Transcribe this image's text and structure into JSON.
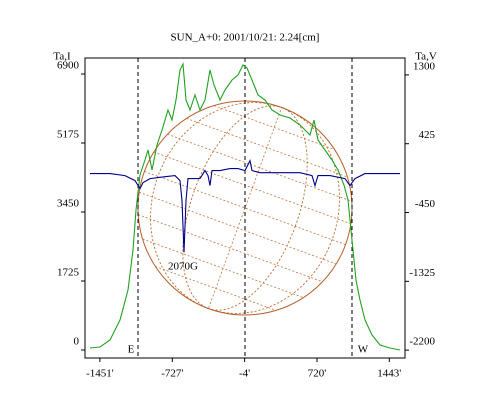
{
  "chart_data": {
    "type": "line",
    "title": "SUN_A+0: 2001/10/21: 2.24[cm]",
    "ylabel": "Ta,I",
    "y2label": "Ta,V",
    "annotations": [
      "E",
      "W",
      "2070G"
    ],
    "xlim": [
      -1600,
      1600
    ],
    "xticks": [
      {
        "value": -1451,
        "label": "-1451'"
      },
      {
        "value": -727,
        "label": "-727'"
      },
      {
        "value": -4,
        "label": "-4'"
      },
      {
        "value": 720,
        "label": "720'"
      },
      {
        "value": 1443,
        "label": "1443'"
      }
    ],
    "ylim": [
      -200,
      7300
    ],
    "yticks": [
      0,
      1725,
      3450,
      5175,
      6900
    ],
    "y2lim": [
      -2300,
      1515
    ],
    "y2ticks": [
      -2200,
      -1325,
      -450,
      425,
      1300
    ],
    "series": [
      {
        "color": "#22a022",
        "x": [
          -1550,
          -1450,
          -1350,
          -1250,
          -1170,
          -1120,
          -1090,
          -1050,
          -1000,
          -970,
          -930,
          -880,
          -830,
          -770,
          -730,
          -690,
          -650,
          -620,
          -590,
          -550,
          -500,
          -450,
          -400,
          -350,
          -310,
          -250,
          -200,
          -130,
          -70,
          -20,
          20,
          70,
          130,
          200,
          270,
          350,
          450,
          550,
          650,
          690,
          730,
          800,
          870,
          930,
          990,
          1030,
          1070,
          1110,
          1150,
          1200,
          1270,
          1350,
          1450,
          1550
        ],
        "values": [
          50,
          75,
          250,
          750,
          1500,
          2500,
          3500,
          4375,
          4750,
          5000,
          4500,
          5125,
          5500,
          6000,
          5750,
          6250,
          7000,
          7150,
          6250,
          6000,
          6375,
          6000,
          6250,
          7000,
          6625,
          6250,
          6500,
          6750,
          6875,
          7125,
          7050,
          6750,
          6375,
          6250,
          6000,
          5875,
          5800,
          5625,
          5375,
          5750,
          5250,
          5000,
          4750,
          4500,
          4125,
          3750,
          2750,
          1750,
          1250,
          750,
          375,
          125,
          50,
          0
        ]
      },
      {
        "color": "#00008b",
        "axis": "y2",
        "x": [
          -1550,
          -1350,
          -1200,
          -1100,
          -1050,
          -1020,
          -950,
          -800,
          -700,
          -650,
          -630,
          -610,
          -590,
          -570,
          -450,
          -400,
          -370,
          -350,
          -330,
          -250,
          -150,
          -70,
          0,
          50,
          70,
          150,
          350,
          550,
          670,
          700,
          730,
          850,
          1000,
          1050,
          1100,
          1200,
          1550
        ],
        "values": [
          45,
          45,
          19,
          -44,
          -146,
          -70,
          -19,
          6,
          19,
          -44,
          -298,
          -957,
          -298,
          -19,
          -19,
          83,
          19,
          -108,
          83,
          83,
          108,
          108,
          83,
          209,
          83,
          57,
          57,
          57,
          19,
          -108,
          19,
          19,
          -19,
          -108,
          -19,
          45,
          45
        ]
      }
    ]
  }
}
